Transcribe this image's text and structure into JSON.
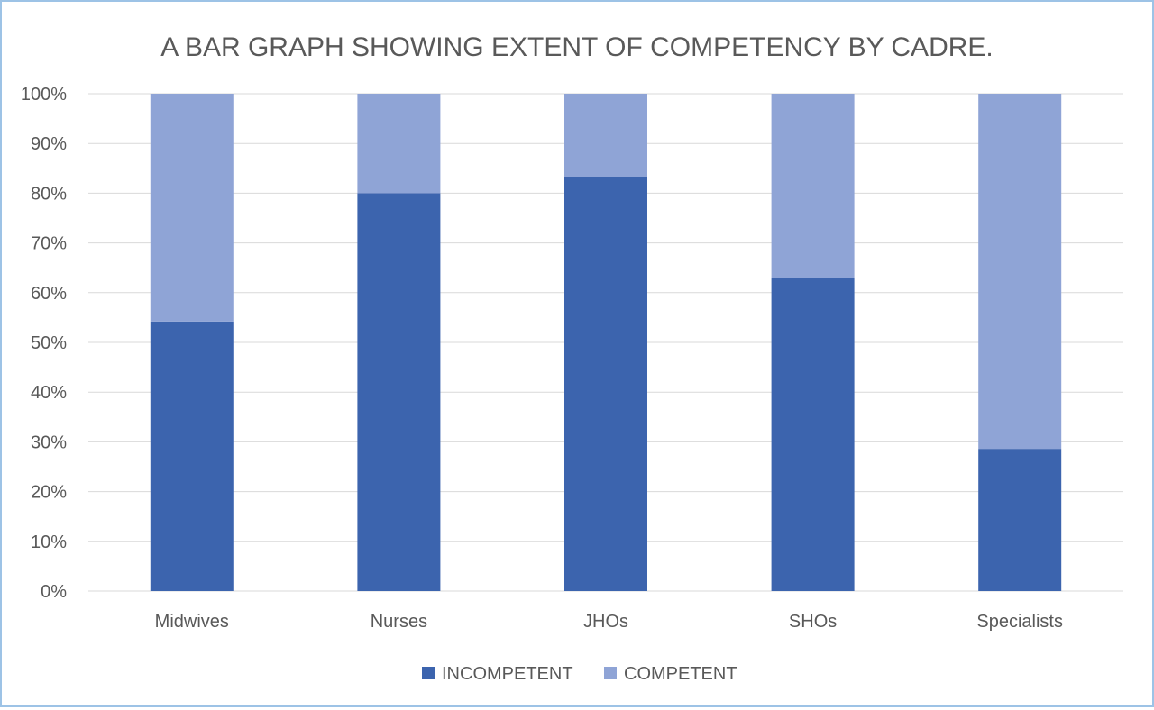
{
  "chart_data": {
    "type": "bar",
    "stacked": true,
    "title": "A BAR GRAPH SHOWING EXTENT OF COMPETENCY BY CADRE.",
    "xlabel": "",
    "ylabel": "",
    "categories": [
      "Midwives",
      "Nurses",
      "JHOs",
      "SHOs",
      "Specialists"
    ],
    "series": [
      {
        "name": "INCOMPETENT",
        "color": "#3c64ae",
        "values": [
          54.2,
          80.0,
          83.3,
          63.0,
          28.6
        ]
      },
      {
        "name": "COMPETENT",
        "color": "#8fa4d6",
        "values": [
          45.8,
          20.0,
          16.7,
          37.0,
          71.4
        ]
      }
    ],
    "ylim": [
      0,
      100
    ],
    "yticks": [
      0,
      10,
      20,
      30,
      40,
      50,
      60,
      70,
      80,
      90,
      100
    ],
    "ytick_suffix": "%",
    "grid": true,
    "legend_position": "bottom"
  }
}
